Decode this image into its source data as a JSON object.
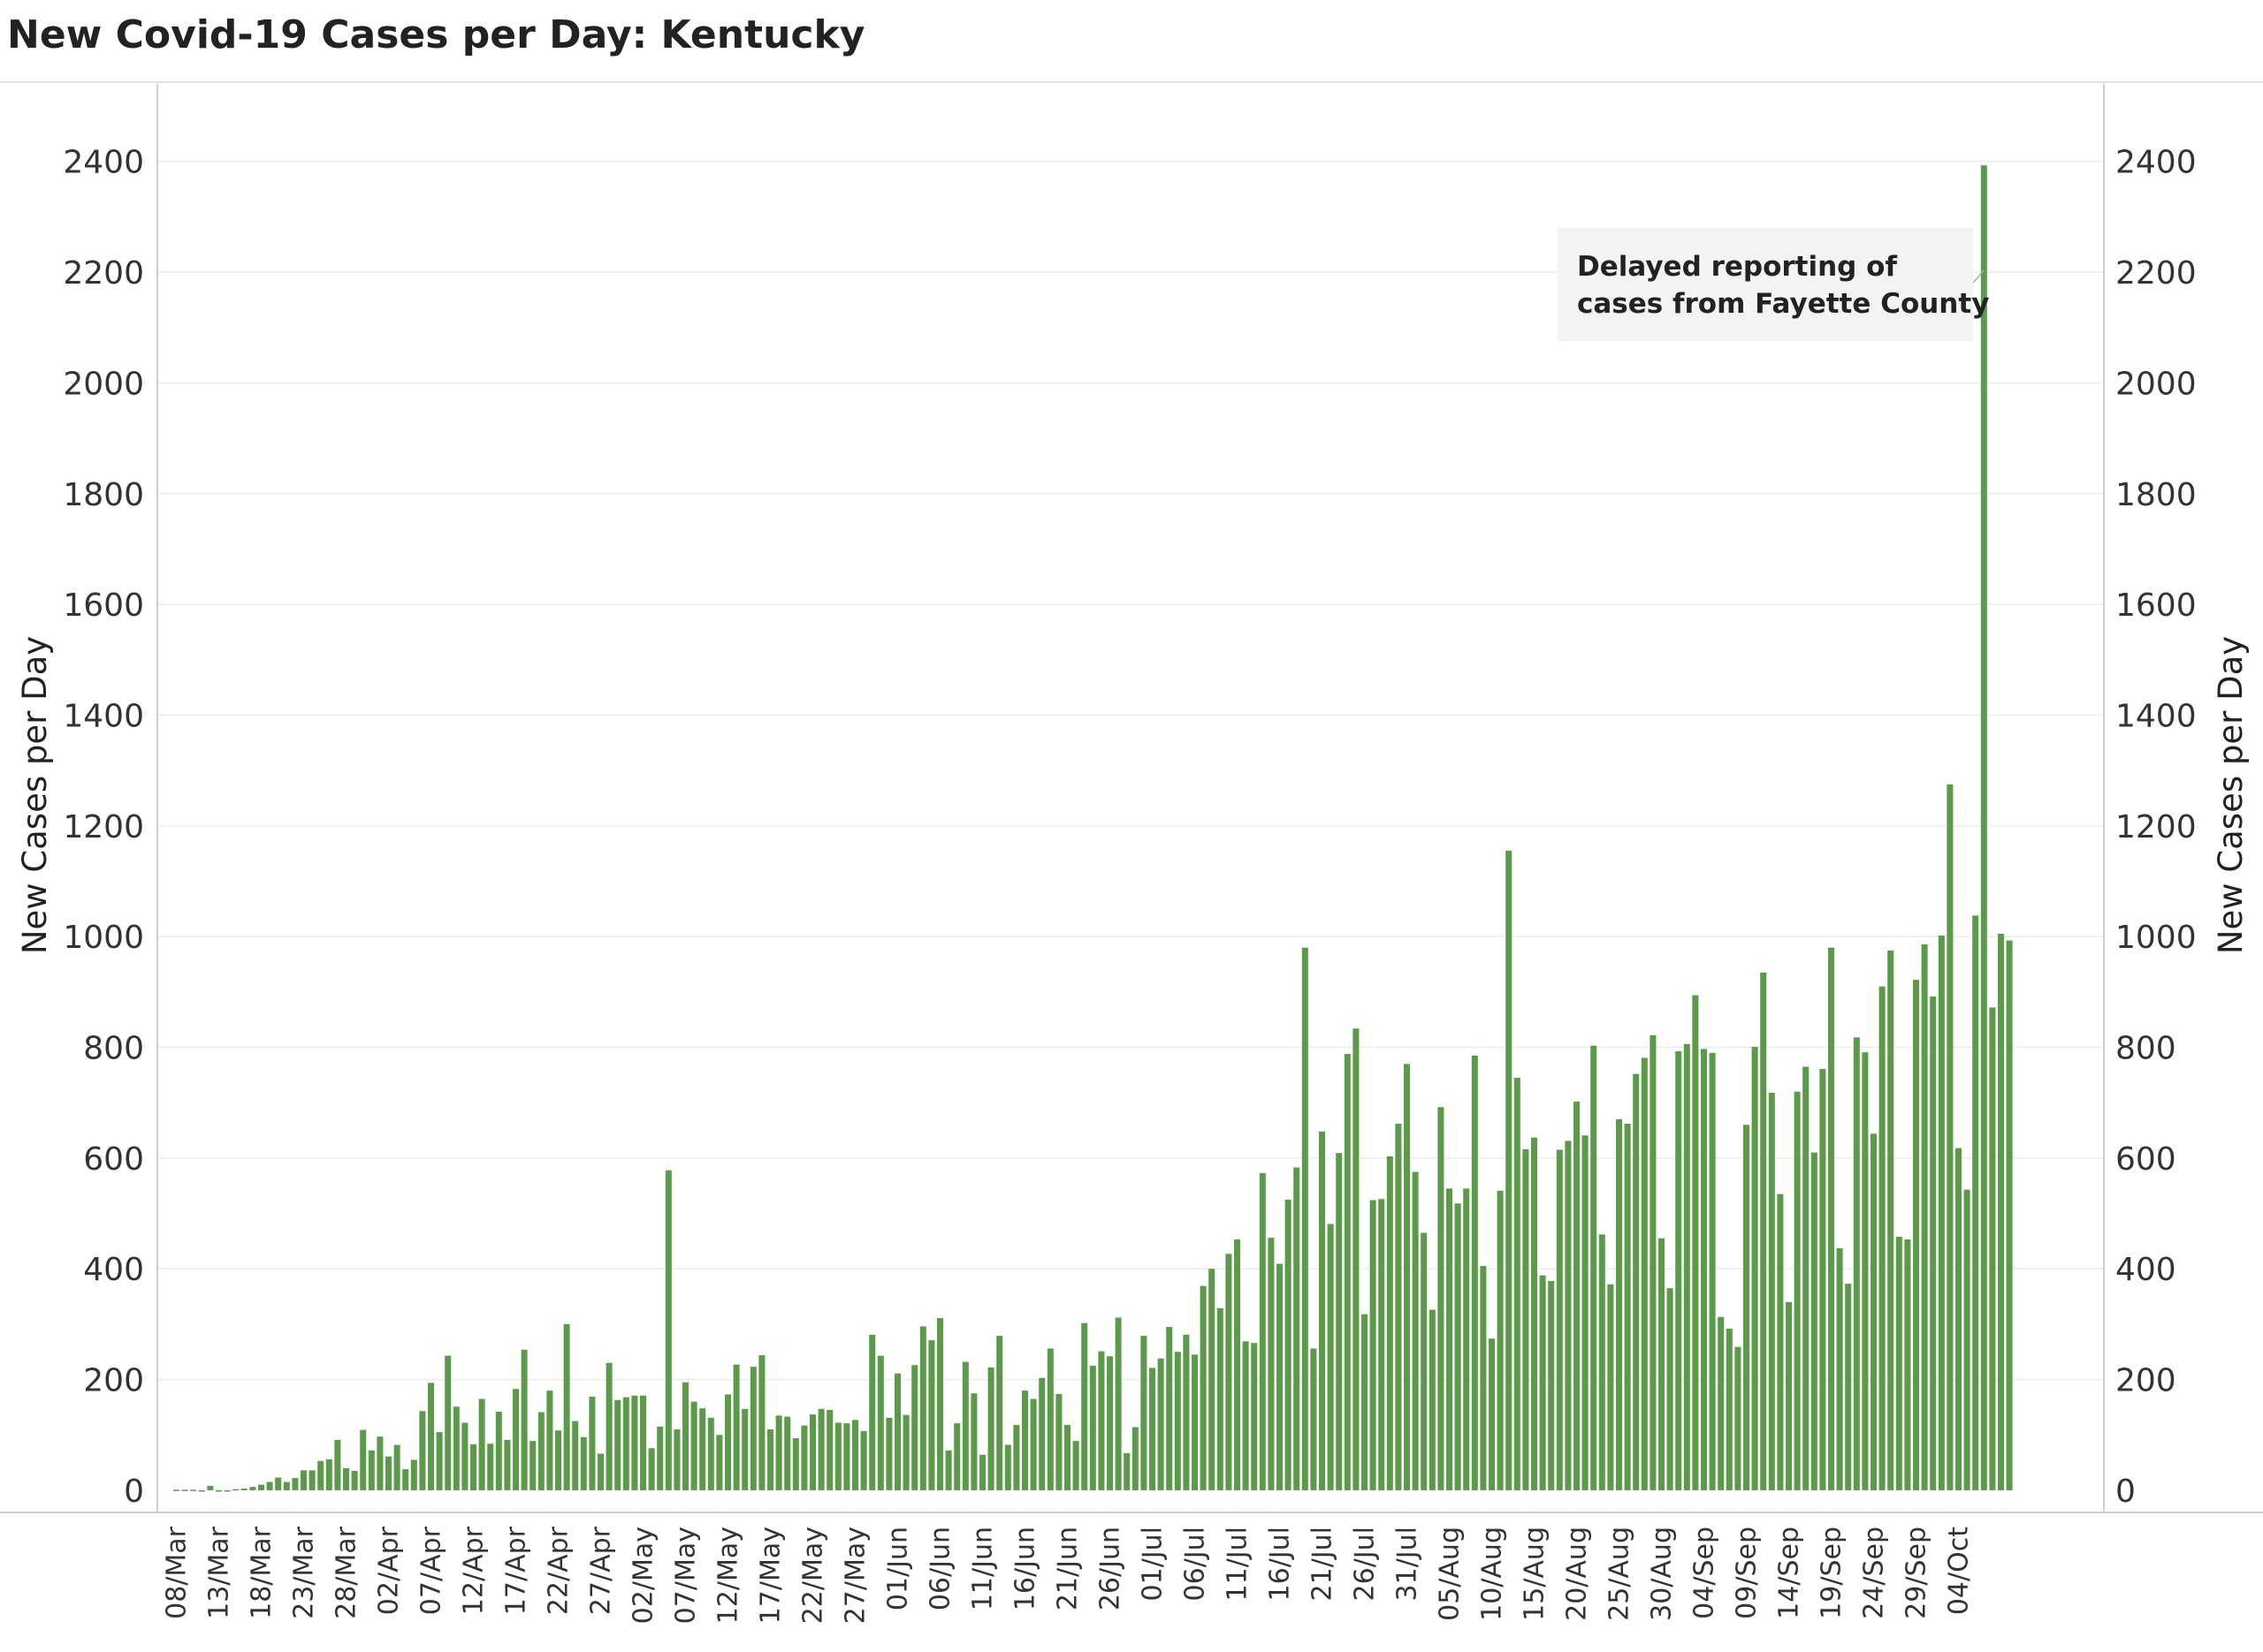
{
  "title": "New Covid-19 Cases per Day: Kentucky",
  "colors": {
    "bar": "#5a9a49",
    "grid": "#ececec",
    "axis": "#cfcfcf",
    "annotation_bg": "#f3f3f3"
  },
  "chart_data": {
    "type": "bar",
    "title": "New Covid-19 Cases per Day: Kentucky",
    "ylabel": "New Cases per Day",
    "ylabel_right": "New Cases per Day",
    "ylim": [
      -40,
      2540
    ],
    "yticks": [
      0,
      200,
      400,
      600,
      800,
      1000,
      1200,
      1400,
      1600,
      1800,
      2000,
      2200,
      2400
    ],
    "grid": true,
    "start_date": "08/Mar",
    "xtick_labels": [
      "08/Mar",
      "13/Mar",
      "18/Mar",
      "23/Mar",
      "28/Mar",
      "02/Apr",
      "07/Apr",
      "12/Apr",
      "17/Apr",
      "22/Apr",
      "27/Apr",
      "02/May",
      "07/May",
      "12/May",
      "17/May",
      "22/May",
      "27/May",
      "01/Jun",
      "06/Jun",
      "11/Jun",
      "16/Jun",
      "21/Jun",
      "26/Jun",
      "01/Jul",
      "06/Jul",
      "11/Jul",
      "16/Jul",
      "21/Jul",
      "26/Jul",
      "31/Jul",
      "05/Aug",
      "10/Aug",
      "15/Aug",
      "20/Aug",
      "25/Aug",
      "30/Aug",
      "04/Sep",
      "09/Sep",
      "14/Sep",
      "19/Sep",
      "24/Sep",
      "29/Sep",
      "04/Oct"
    ],
    "values": [
      1,
      1,
      1,
      0,
      8,
      0,
      0,
      2,
      3,
      6,
      10,
      15,
      23,
      15,
      22,
      36,
      36,
      53,
      56,
      91,
      40,
      35,
      109,
      72,
      97,
      61,
      82,
      38,
      55,
      143,
      194,
      105,
      243,
      151,
      122,
      83,
      165,
      84,
      142,
      91,
      183,
      254,
      89,
      141,
      180,
      108,
      300,
      125,
      96,
      169,
      66,
      230,
      163,
      168,
      171,
      171,
      76,
      115,
      578,
      110,
      195,
      160,
      148,
      131,
      100,
      173,
      227,
      147,
      223,
      244,
      110,
      135,
      133,
      94,
      117,
      137,
      147,
      145,
      122,
      121,
      127,
      107,
      281,
      243,
      131,
      211,
      136,
      226,
      296,
      271,
      311,
      72,
      121,
      232,
      175,
      64,
      222,
      279,
      82,
      118,
      180,
      165,
      203,
      256,
      174,
      118,
      89,
      302,
      225,
      251,
      242,
      312,
      67,
      114,
      279,
      221,
      238,
      295,
      250,
      281,
      245,
      369,
      400,
      329,
      427,
      453,
      269,
      266,
      573,
      456,
      409,
      525,
      583,
      980,
      256,
      648,
      481,
      609,
      788,
      834,
      318,
      524,
      526,
      603,
      662,
      770,
      575,
      465,
      326,
      692,
      545,
      518,
      545,
      785,
      405,
      274,
      541,
      1155,
      745,
      616,
      637,
      388,
      378,
      615,
      631,
      702,
      641,
      803,
      462,
      372,
      670,
      662,
      752,
      781,
      822,
      455,
      365,
      793,
      806,
      894,
      797,
      790,
      313,
      292,
      259,
      660,
      801,
      935,
      718,
      535,
      340,
      720,
      765,
      610,
      761,
      980,
      437,
      373,
      818,
      791,
      644,
      910,
      975,
      458,
      453,
      922,
      986,
      892,
      1002,
      1275,
      618,
      543,
      1038,
      2393,
      872,
      1005,
      993
    ],
    "annotation": {
      "text_lines": [
        "Delayed reporting of",
        "cases from Fayette County"
      ]
    }
  }
}
